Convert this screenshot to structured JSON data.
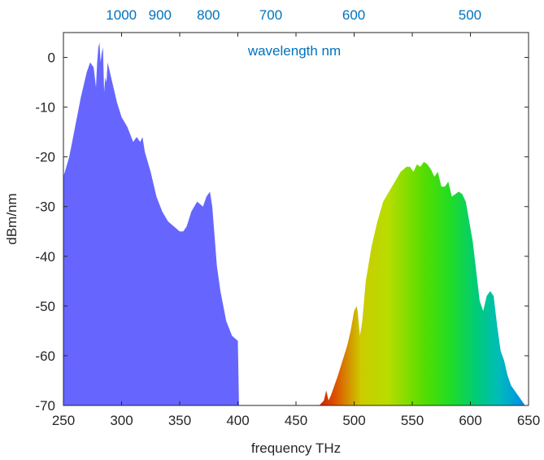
{
  "chart_data": {
    "type": "area",
    "xlabel": "frequency THz",
    "ylabel": "dBm/nm",
    "xlim": [
      250,
      650
    ],
    "ylim": [
      -70,
      5
    ],
    "x_ticks": [
      250,
      300,
      350,
      400,
      450,
      500,
      550,
      600,
      650
    ],
    "y_ticks": [
      0,
      -10,
      -20,
      -30,
      -40,
      -50,
      -60,
      -70
    ],
    "grid": false,
    "top_axis": {
      "label": "wavelength nm",
      "ticks": [
        {
          "label": "1000",
          "frequency": 299.8
        },
        {
          "label": "900",
          "frequency": 333.1
        },
        {
          "label": "800",
          "frequency": 374.7
        },
        {
          "label": "700",
          "frequency": 428.3
        },
        {
          "label": "600",
          "frequency": 499.7
        },
        {
          "label": "500",
          "frequency": 599.6
        }
      ]
    },
    "series": [
      {
        "color": "#6666FF",
        "fill": "solid",
        "x": [
          250,
          255,
          260,
          265,
          270,
          273,
          276,
          278,
          279,
          280,
          281,
          282,
          283,
          284,
          285,
          286,
          287,
          288,
          290,
          293,
          296,
          300,
          305,
          310,
          313,
          316,
          318,
          320,
          325,
          330,
          335,
          340,
          345,
          350,
          353,
          356,
          360,
          365,
          370,
          373,
          376,
          378,
          380,
          382,
          385,
          390,
          395,
          400,
          401
        ],
        "y": [
          -24,
          -20,
          -14,
          -8,
          -3,
          -1,
          -2,
          -6,
          -1,
          2,
          3,
          -1,
          1,
          2,
          -7,
          -4,
          -5,
          -1,
          -3,
          -6,
          -9,
          -12,
          -14,
          -17,
          -16,
          -17,
          -16,
          -19,
          -23,
          -28,
          -31,
          -33,
          -34,
          -35,
          -35,
          -34,
          -31,
          -29,
          -30,
          -28,
          -27,
          -30,
          -36,
          -42,
          -47,
          -53,
          -56,
          -57,
          -70
        ]
      },
      {
        "fill": "spectrum",
        "x": [
          470,
          474,
          476,
          478,
          480,
          483,
          486,
          490,
          494,
          497,
          500,
          502,
          503,
          505,
          507,
          510,
          515,
          520,
          525,
          530,
          535,
          540,
          545,
          548,
          551,
          554,
          557,
          560,
          563,
          566,
          569,
          572,
          575,
          578,
          581,
          584,
          587,
          590,
          593,
          596,
          599,
          602,
          605,
          608,
          611,
          614,
          617,
          620,
          623,
          626,
          629,
          632,
          635,
          638,
          641,
          644,
          647,
          650
        ],
        "y": [
          -70,
          -69,
          -67,
          -69,
          -68,
          -66,
          -64,
          -61,
          -58,
          -55,
          -51,
          -50,
          -51,
          -56,
          -53,
          -45,
          -38,
          -33,
          -29,
          -27,
          -25,
          -23,
          -22,
          -22,
          -23,
          -21.5,
          -22,
          -21,
          -21.5,
          -22.5,
          -24,
          -23,
          -26,
          -26,
          -25,
          -28,
          -27.5,
          -27,
          -27.5,
          -29,
          -33,
          -37,
          -43,
          -49,
          -51,
          -48,
          -47,
          -48,
          -54,
          -59,
          -61,
          -64,
          -66,
          -67,
          -68,
          -69,
          -70,
          -70
        ]
      }
    ]
  }
}
